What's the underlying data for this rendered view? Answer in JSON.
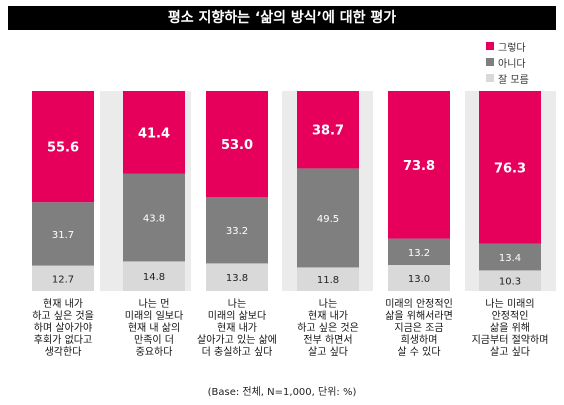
{
  "title": "평소 지향하는 ‘삶의 방식’에 대한 평가",
  "note": "(Base: 전체, N=1,000, 단위: %)",
  "colors": {
    "yes": "#e6005c",
    "no": "#7f7f7f",
    "neither": "#d9d9d9",
    "band": "#ebebeb"
  },
  "chart_data": {
    "type": "bar",
    "stacked": true,
    "unit": "%",
    "legend_position": "top-right",
    "categories": [
      "현재 내가\n하고 싶은 것을\n하며 살아가야\n후회가 없다고\n생각한다",
      "나는 먼\n미래의 일보다\n현재 내 삶의\n만족이 더\n중요하다",
      "나는\n미래의 삶보다\n현재 내가\n살아가고 있는 삶에\n더 충실하고 싶다",
      "나는\n현재 내가\n하고 싶은 것은\n전부 하면서\n살고 싶다",
      "미래의 안정적인\n삶을 위해서라면\n지금은 조금\n희생하며\n살 수 있다",
      "나는 미래의\n안정적인\n삶을 위해\n지금부터 절약하며\n살고 싶다"
    ],
    "series": [
      {
        "name": "그렇다",
        "color": "#e6005c",
        "values": [
          55.6,
          41.4,
          53.0,
          38.7,
          73.8,
          76.3
        ],
        "labels": [
          "55.6",
          "41.4",
          "53.0",
          "38.7",
          "73.8",
          "76.3"
        ]
      },
      {
        "name": "아니다",
        "color": "#7f7f7f",
        "values": [
          31.7,
          43.8,
          33.2,
          49.5,
          13.2,
          13.4
        ],
        "labels": [
          "31.7",
          "43.8",
          "33.2",
          "49.5",
          "13.2",
          "13.4"
        ]
      },
      {
        "name": "잘 모름",
        "color": "#d9d9d9",
        "values": [
          12.7,
          14.8,
          13.8,
          11.8,
          13.0,
          10.3
        ],
        "labels": [
          "12.7",
          "14.8",
          "13.8",
          "11.8",
          "13.0",
          "10.3"
        ]
      }
    ],
    "ylim": [
      0,
      100
    ]
  }
}
